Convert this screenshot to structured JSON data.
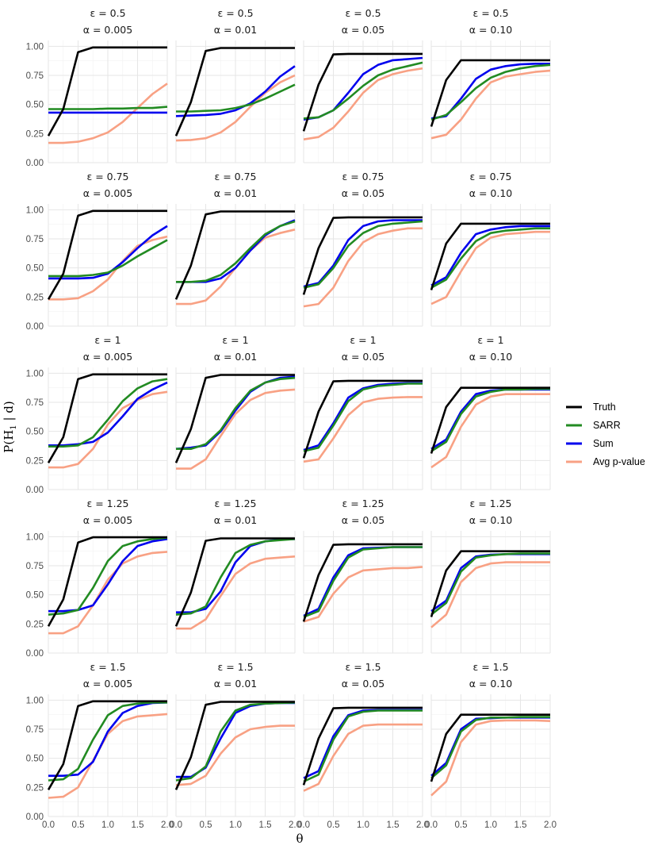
{
  "chart_data": {
    "type": "line",
    "xlabel": "θ",
    "ylabel_base": "P(H",
    "ylabel_sub": "1",
    "ylabel_rest": " | d)",
    "x": [
      0.0,
      0.25,
      0.5,
      0.75,
      1.0,
      1.25,
      1.5,
      1.75,
      2.0
    ],
    "xlim": [
      0,
      2
    ],
    "ylim": [
      0,
      1.05
    ],
    "x_ticks": [
      0,
      0.5,
      1,
      1.5,
      2
    ],
    "x_tick_labels": [
      "0.0",
      "0.5",
      "1.0",
      "1.5",
      "2.0"
    ],
    "y_ticks": [
      0,
      0.25,
      0.5,
      0.75,
      1
    ],
    "y_tick_labels": [
      "0.00",
      "0.25",
      "0.50",
      "0.75",
      "1.00"
    ],
    "grid": true,
    "legend_position": "right",
    "series_styles": [
      {
        "name": "Truth",
        "color": "#000000"
      },
      {
        "name": "SARR",
        "color": "#228b22"
      },
      {
        "name": "Sum",
        "color": "#0000ee"
      },
      {
        "name": "Avg p-value",
        "color": "#f8a184"
      }
    ],
    "epsilons": [
      "ε = 0.5",
      "ε = 0.75",
      "ε = 1",
      "ε = 1.25",
      "ε = 1.5"
    ],
    "alphas": [
      "α = 0.005",
      "α = 0.01",
      "α = 0.05",
      "α = 0.10"
    ],
    "panels": [
      [
        {
          "Truth": [
            0.23,
            0.46,
            0.95,
            0.99,
            0.99,
            0.99,
            0.99,
            0.99,
            0.99
          ],
          "SARR": [
            0.46,
            0.46,
            0.46,
            0.46,
            0.465,
            0.465,
            0.47,
            0.47,
            0.48
          ],
          "Sum": [
            0.43,
            0.43,
            0.43,
            0.43,
            0.43,
            0.43,
            0.43,
            0.43,
            0.43
          ],
          "Avg p-value": [
            0.17,
            0.17,
            0.18,
            0.21,
            0.26,
            0.35,
            0.47,
            0.59,
            0.68
          ]
        },
        {
          "Truth": [
            0.23,
            0.52,
            0.96,
            0.985,
            0.985,
            0.985,
            0.985,
            0.985,
            0.985
          ],
          "SARR": [
            0.44,
            0.44,
            0.445,
            0.45,
            0.47,
            0.5,
            0.55,
            0.61,
            0.67
          ],
          "Sum": [
            0.4,
            0.405,
            0.41,
            0.42,
            0.45,
            0.51,
            0.61,
            0.74,
            0.83
          ],
          "Avg p-value": [
            0.19,
            0.195,
            0.21,
            0.26,
            0.35,
            0.48,
            0.6,
            0.69,
            0.75
          ]
        },
        {
          "Truth": [
            0.27,
            0.67,
            0.93,
            0.935,
            0.935,
            0.935,
            0.935,
            0.935,
            0.935
          ],
          "SARR": [
            0.38,
            0.39,
            0.45,
            0.55,
            0.66,
            0.75,
            0.8,
            0.83,
            0.86
          ],
          "Sum": [
            0.37,
            0.39,
            0.45,
            0.6,
            0.76,
            0.84,
            0.88,
            0.89,
            0.9
          ],
          "Avg p-value": [
            0.2,
            0.22,
            0.3,
            0.44,
            0.6,
            0.71,
            0.76,
            0.79,
            0.81
          ]
        },
        {
          "Truth": [
            0.31,
            0.71,
            0.88,
            0.88,
            0.88,
            0.88,
            0.88,
            0.88,
            0.88
          ],
          "SARR": [
            0.37,
            0.41,
            0.52,
            0.64,
            0.73,
            0.78,
            0.81,
            0.83,
            0.84
          ],
          "Sum": [
            0.38,
            0.4,
            0.55,
            0.72,
            0.8,
            0.83,
            0.845,
            0.85,
            0.85
          ],
          "Avg p-value": [
            0.21,
            0.24,
            0.37,
            0.55,
            0.69,
            0.74,
            0.76,
            0.78,
            0.79
          ]
        }
      ],
      [
        {
          "Truth": [
            0.23,
            0.45,
            0.95,
            0.99,
            0.99,
            0.99,
            0.99,
            0.99,
            0.99
          ],
          "SARR": [
            0.43,
            0.43,
            0.43,
            0.44,
            0.46,
            0.52,
            0.6,
            0.67,
            0.74
          ],
          "Sum": [
            0.41,
            0.41,
            0.41,
            0.415,
            0.45,
            0.55,
            0.67,
            0.78,
            0.86
          ],
          "Avg p-value": [
            0.23,
            0.23,
            0.24,
            0.3,
            0.4,
            0.56,
            0.69,
            0.74,
            0.77
          ]
        },
        {
          "Truth": [
            0.23,
            0.52,
            0.96,
            0.985,
            0.985,
            0.985,
            0.985,
            0.985,
            0.985
          ],
          "SARR": [
            0.38,
            0.38,
            0.39,
            0.44,
            0.54,
            0.67,
            0.79,
            0.86,
            0.9
          ],
          "Sum": [
            0.38,
            0.38,
            0.38,
            0.41,
            0.5,
            0.65,
            0.78,
            0.86,
            0.91
          ],
          "Avg p-value": [
            0.19,
            0.19,
            0.22,
            0.34,
            0.5,
            0.65,
            0.76,
            0.8,
            0.83
          ]
        },
        {
          "Truth": [
            0.27,
            0.67,
            0.93,
            0.935,
            0.935,
            0.935,
            0.935,
            0.935,
            0.935
          ],
          "SARR": [
            0.33,
            0.36,
            0.5,
            0.69,
            0.8,
            0.86,
            0.88,
            0.89,
            0.9
          ],
          "Sum": [
            0.34,
            0.37,
            0.52,
            0.74,
            0.86,
            0.9,
            0.91,
            0.91,
            0.91
          ],
          "Avg p-value": [
            0.17,
            0.19,
            0.33,
            0.56,
            0.72,
            0.79,
            0.82,
            0.84,
            0.84
          ]
        },
        {
          "Truth": [
            0.31,
            0.71,
            0.88,
            0.88,
            0.88,
            0.88,
            0.88,
            0.88,
            0.88
          ],
          "SARR": [
            0.33,
            0.4,
            0.58,
            0.73,
            0.8,
            0.82,
            0.83,
            0.84,
            0.84
          ],
          "Sum": [
            0.35,
            0.42,
            0.63,
            0.79,
            0.83,
            0.85,
            0.86,
            0.86,
            0.86
          ],
          "Avg p-value": [
            0.19,
            0.25,
            0.47,
            0.67,
            0.76,
            0.79,
            0.8,
            0.81,
            0.81
          ]
        }
      ],
      [
        {
          "Truth": [
            0.23,
            0.45,
            0.95,
            0.99,
            0.99,
            0.99,
            0.99,
            0.99,
            0.99
          ],
          "SARR": [
            0.37,
            0.37,
            0.38,
            0.45,
            0.6,
            0.76,
            0.87,
            0.93,
            0.95
          ],
          "Sum": [
            0.38,
            0.38,
            0.39,
            0.41,
            0.49,
            0.63,
            0.78,
            0.86,
            0.92
          ],
          "Avg p-value": [
            0.19,
            0.19,
            0.22,
            0.35,
            0.56,
            0.7,
            0.77,
            0.82,
            0.84
          ]
        },
        {
          "Truth": [
            0.23,
            0.52,
            0.96,
            0.985,
            0.985,
            0.985,
            0.985,
            0.985,
            0.985
          ],
          "SARR": [
            0.35,
            0.35,
            0.39,
            0.51,
            0.7,
            0.85,
            0.92,
            0.95,
            0.96
          ],
          "Sum": [
            0.35,
            0.36,
            0.38,
            0.5,
            0.68,
            0.84,
            0.92,
            0.96,
            0.97
          ],
          "Avg p-value": [
            0.18,
            0.18,
            0.26,
            0.46,
            0.65,
            0.77,
            0.83,
            0.85,
            0.86
          ]
        },
        {
          "Truth": [
            0.27,
            0.67,
            0.93,
            0.935,
            0.935,
            0.935,
            0.935,
            0.935,
            0.935
          ],
          "SARR": [
            0.33,
            0.36,
            0.55,
            0.76,
            0.86,
            0.89,
            0.9,
            0.91,
            0.91
          ],
          "Sum": [
            0.34,
            0.38,
            0.57,
            0.79,
            0.87,
            0.9,
            0.91,
            0.915,
            0.915
          ],
          "Avg p-value": [
            0.24,
            0.26,
            0.44,
            0.64,
            0.75,
            0.78,
            0.79,
            0.795,
            0.795
          ]
        },
        {
          "Truth": [
            0.31,
            0.71,
            0.875,
            0.875,
            0.875,
            0.875,
            0.875,
            0.875,
            0.875
          ],
          "SARR": [
            0.33,
            0.41,
            0.65,
            0.8,
            0.84,
            0.86,
            0.86,
            0.865,
            0.865
          ],
          "Sum": [
            0.35,
            0.43,
            0.67,
            0.82,
            0.85,
            0.86,
            0.86,
            0.86,
            0.86
          ],
          "Avg p-value": [
            0.19,
            0.28,
            0.54,
            0.73,
            0.8,
            0.82,
            0.82,
            0.82,
            0.82
          ]
        }
      ],
      [
        {
          "Truth": [
            0.23,
            0.46,
            0.95,
            0.995,
            0.995,
            0.995,
            0.995,
            0.995,
            0.995
          ],
          "SARR": [
            0.33,
            0.34,
            0.37,
            0.56,
            0.79,
            0.92,
            0.96,
            0.98,
            0.99
          ],
          "Sum": [
            0.36,
            0.36,
            0.37,
            0.41,
            0.59,
            0.79,
            0.92,
            0.96,
            0.98
          ],
          "Avg p-value": [
            0.17,
            0.17,
            0.23,
            0.41,
            0.63,
            0.77,
            0.83,
            0.86,
            0.87
          ]
        },
        {
          "Truth": [
            0.23,
            0.52,
            0.965,
            0.985,
            0.985,
            0.985,
            0.985,
            0.985,
            0.985
          ],
          "SARR": [
            0.33,
            0.34,
            0.4,
            0.65,
            0.86,
            0.93,
            0.96,
            0.97,
            0.98
          ],
          "Sum": [
            0.35,
            0.35,
            0.38,
            0.53,
            0.78,
            0.92,
            0.96,
            0.975,
            0.98
          ],
          "Avg p-value": [
            0.21,
            0.21,
            0.29,
            0.49,
            0.68,
            0.77,
            0.81,
            0.82,
            0.83
          ]
        },
        {
          "Truth": [
            0.27,
            0.67,
            0.93,
            0.935,
            0.935,
            0.935,
            0.935,
            0.935,
            0.935
          ],
          "SARR": [
            0.31,
            0.36,
            0.62,
            0.82,
            0.89,
            0.9,
            0.91,
            0.91,
            0.91
          ],
          "Sum": [
            0.32,
            0.38,
            0.65,
            0.84,
            0.9,
            0.905,
            0.91,
            0.91,
            0.91
          ],
          "Avg p-value": [
            0.27,
            0.31,
            0.51,
            0.65,
            0.71,
            0.72,
            0.73,
            0.73,
            0.74
          ]
        },
        {
          "Truth": [
            0.31,
            0.71,
            0.875,
            0.875,
            0.875,
            0.875,
            0.875,
            0.875,
            0.875
          ],
          "SARR": [
            0.33,
            0.43,
            0.7,
            0.82,
            0.84,
            0.85,
            0.855,
            0.855,
            0.855
          ],
          "Sum": [
            0.36,
            0.45,
            0.73,
            0.83,
            0.845,
            0.85,
            0.85,
            0.85,
            0.85
          ],
          "Avg p-value": [
            0.22,
            0.33,
            0.61,
            0.73,
            0.77,
            0.78,
            0.78,
            0.78,
            0.78
          ]
        }
      ],
      [
        {
          "Truth": [
            0.23,
            0.45,
            0.95,
            0.99,
            0.99,
            0.99,
            0.99,
            0.99,
            0.99
          ],
          "SARR": [
            0.31,
            0.32,
            0.41,
            0.66,
            0.87,
            0.95,
            0.97,
            0.98,
            0.98
          ],
          "Sum": [
            0.35,
            0.35,
            0.36,
            0.47,
            0.73,
            0.89,
            0.95,
            0.975,
            0.98
          ],
          "Avg p-value": [
            0.16,
            0.17,
            0.25,
            0.48,
            0.71,
            0.82,
            0.86,
            0.87,
            0.88
          ]
        },
        {
          "Truth": [
            0.23,
            0.51,
            0.96,
            0.985,
            0.985,
            0.985,
            0.985,
            0.985,
            0.985
          ],
          "SARR": [
            0.31,
            0.33,
            0.43,
            0.73,
            0.91,
            0.96,
            0.97,
            0.975,
            0.98
          ],
          "Sum": [
            0.34,
            0.34,
            0.42,
            0.67,
            0.89,
            0.95,
            0.97,
            0.975,
            0.975
          ],
          "Avg p-value": [
            0.27,
            0.28,
            0.35,
            0.54,
            0.68,
            0.75,
            0.77,
            0.78,
            0.78
          ]
        },
        {
          "Truth": [
            0.27,
            0.67,
            0.93,
            0.935,
            0.935,
            0.935,
            0.935,
            0.935,
            0.935
          ],
          "SARR": [
            0.3,
            0.36,
            0.66,
            0.86,
            0.9,
            0.91,
            0.91,
            0.91,
            0.91
          ],
          "Sum": [
            0.33,
            0.39,
            0.69,
            0.87,
            0.91,
            0.915,
            0.915,
            0.915,
            0.915
          ],
          "Avg p-value": [
            0.22,
            0.28,
            0.52,
            0.71,
            0.78,
            0.79,
            0.79,
            0.79,
            0.79
          ]
        },
        {
          "Truth": [
            0.3,
            0.71,
            0.875,
            0.875,
            0.875,
            0.875,
            0.875,
            0.875,
            0.875
          ],
          "SARR": [
            0.33,
            0.44,
            0.73,
            0.83,
            0.85,
            0.85,
            0.855,
            0.855,
            0.855
          ],
          "Sum": [
            0.35,
            0.46,
            0.75,
            0.84,
            0.845,
            0.85,
            0.85,
            0.85,
            0.85
          ],
          "Avg p-value": [
            0.18,
            0.3,
            0.64,
            0.79,
            0.82,
            0.825,
            0.825,
            0.825,
            0.82
          ]
        }
      ]
    ]
  }
}
